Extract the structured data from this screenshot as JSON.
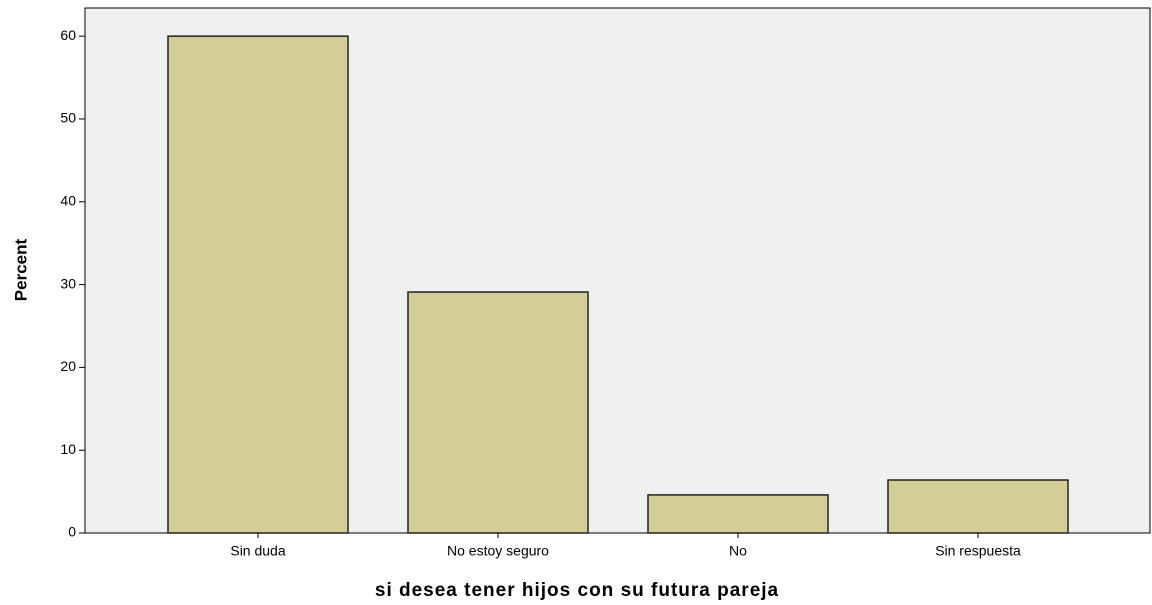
{
  "chart_data": {
    "type": "bar",
    "x_label": "si desea tener hijos con su futura pareja",
    "y_label": "Percent",
    "categories": [
      "Sin duda",
      "No estoy seguro",
      "No",
      "Sin respuesta"
    ],
    "values": [
      60,
      29.1,
      4.6,
      6.4
    ],
    "color": "#d3ce97",
    "ylim": [
      0,
      63.4
    ],
    "yticks": [
      0,
      10,
      20,
      30,
      40,
      50,
      60
    ],
    "grid": false
  }
}
